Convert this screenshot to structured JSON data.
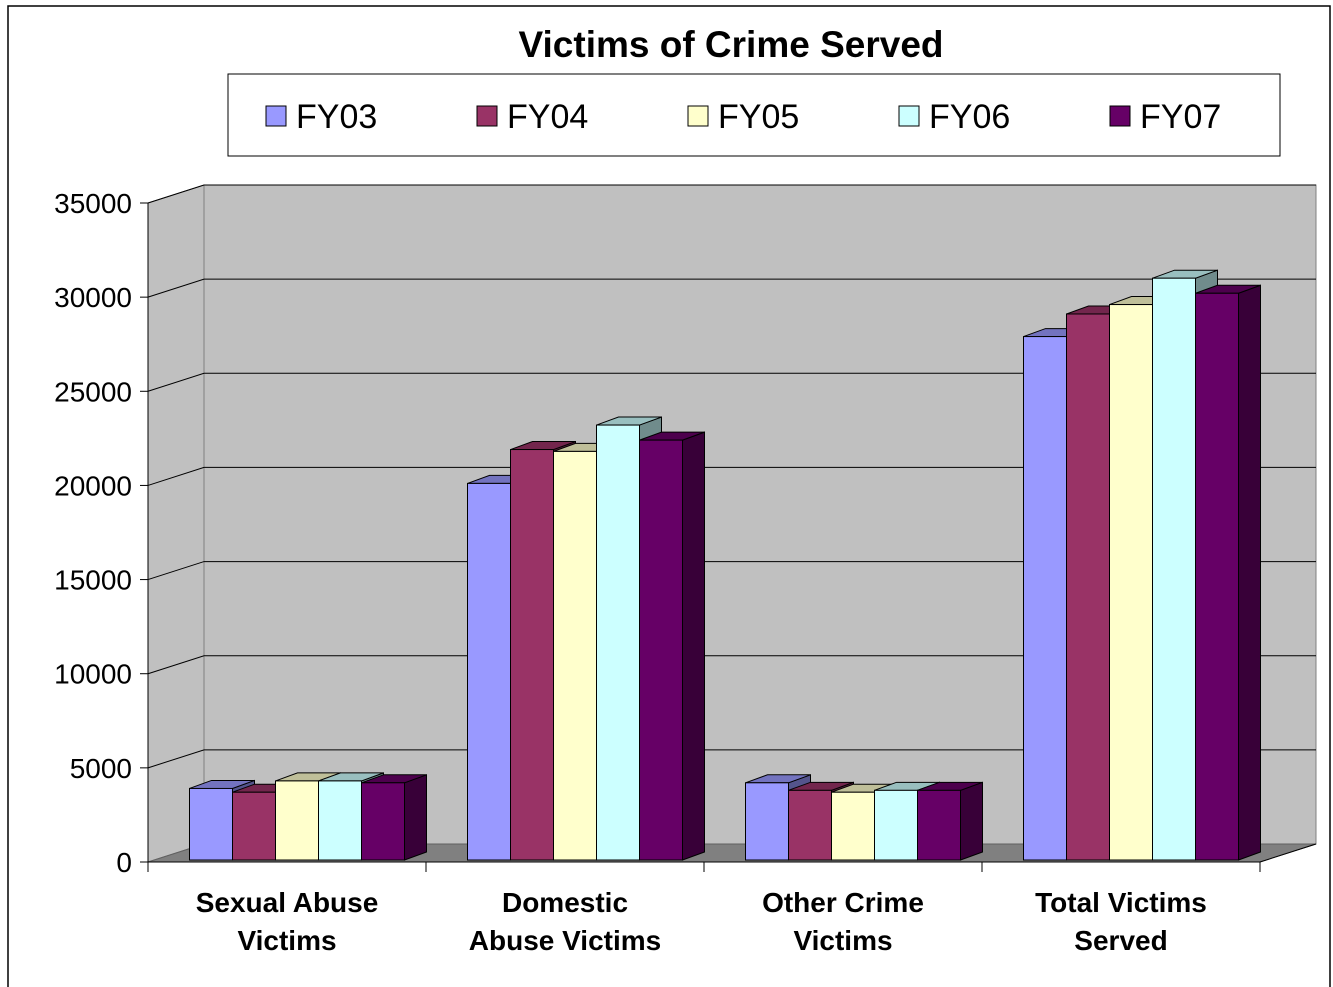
{
  "chart_data": {
    "type": "bar",
    "title": "Victims of Crime Served",
    "xlabel": "",
    "ylabel": "",
    "categories": [
      [
        "Sexual Abuse",
        "Victims"
      ],
      [
        "Domestic",
        "Abuse Victims"
      ],
      [
        "Other Crime",
        "Victims"
      ],
      [
        "Total Victims",
        "Served"
      ]
    ],
    "series": [
      {
        "name": "FY03",
        "color": "#9999FF",
        "values": [
          3800,
          20000,
          4100,
          27800
        ]
      },
      {
        "name": "FY04",
        "color": "#993366",
        "values": [
          3600,
          21800,
          3700,
          29000
        ]
      },
      {
        "name": "FY05",
        "color": "#FFFFCC",
        "values": [
          4200,
          21700,
          3600,
          29500
        ]
      },
      {
        "name": "FY06",
        "color": "#CCFFFF",
        "values": [
          4200,
          23100,
          3700,
          30900
        ]
      },
      {
        "name": "FY07",
        "color": "#660066",
        "values": [
          4100,
          22300,
          3700,
          30100
        ]
      }
    ],
    "ylim": [
      0,
      35000
    ],
    "yticks": [
      0,
      5000,
      10000,
      15000,
      20000,
      25000,
      30000,
      35000
    ],
    "grid": true,
    "legend_position": "top"
  }
}
